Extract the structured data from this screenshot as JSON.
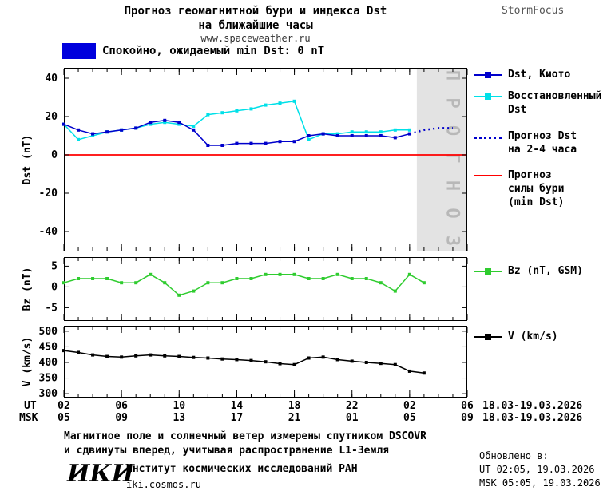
{
  "colors": {
    "dst_kyoto": "#0000cc",
    "dst_restored": "#00e0e8",
    "dst_forecast": "#0000cc",
    "storm_line": "#ff0000",
    "bz": "#2fcc2f",
    "v": "#000000",
    "forecast_band": "#e3e3e3",
    "banner": "#0000dd"
  },
  "header": {
    "title_line1": "Прогноз геомагнитной бури и индекса Dst",
    "title_line2": "на ближайшие часы",
    "url": "www.spaceweather.ru",
    "brand": "StormFocus"
  },
  "banner": {
    "label": "Спокойно, ожидаемый min Dst: 0 nT"
  },
  "chart_data": [
    {
      "type": "line",
      "name": "dst",
      "ylabel": "Dst (nT)",
      "ylim": [
        -50,
        45
      ],
      "yticks": [
        40,
        20,
        0,
        -20,
        -40
      ],
      "xlim": [
        0,
        28
      ],
      "forecast_band": [
        24.5,
        28
      ],
      "forecast_text": "П Р О Г Н О З",
      "hline": {
        "y": 0,
        "color": "#ff0000"
      },
      "series": [
        {
          "name": "Восстановленный Dst",
          "color": "#00e0e8",
          "marker": true,
          "x": [
            0,
            1,
            2,
            3,
            4,
            5,
            6,
            7,
            8,
            9,
            10,
            11,
            12,
            13,
            14,
            15,
            16,
            17,
            18,
            19,
            20,
            21,
            22,
            23,
            24
          ],
          "values": [
            16,
            8,
            10,
            12,
            13,
            14,
            16,
            17,
            16,
            15,
            21,
            22,
            23,
            24,
            26,
            27,
            28,
            8,
            11,
            11,
            12,
            12,
            12,
            13,
            13
          ]
        },
        {
          "name": "Dst, Киото",
          "color": "#0000cc",
          "marker": true,
          "x": [
            0,
            1,
            2,
            3,
            4,
            5,
            6,
            7,
            8,
            9,
            10,
            11,
            12,
            13,
            14,
            15,
            16,
            17,
            18,
            19,
            20,
            21,
            22,
            23,
            24
          ],
          "values": [
            16,
            13,
            11,
            12,
            13,
            14,
            17,
            18,
            17,
            13,
            5,
            5,
            6,
            6,
            6,
            7,
            7,
            10,
            11,
            10,
            10,
            10,
            10,
            9,
            11
          ]
        },
        {
          "name": "Прогноз Dst на 2-4 часа",
          "color": "#0000cc",
          "dash": true,
          "x": [
            24,
            25,
            26,
            27
          ],
          "values": [
            11,
            13,
            14,
            14
          ]
        }
      ]
    },
    {
      "type": "line",
      "name": "bz",
      "ylabel": "Bz (nT)",
      "ylim": [
        -8,
        7
      ],
      "yticks": [
        5,
        0,
        -5
      ],
      "xlim": [
        0,
        28
      ],
      "series": [
        {
          "name": "Bz (nT, GSM)",
          "color": "#2fcc2f",
          "marker": true,
          "x": [
            0,
            1,
            2,
            3,
            4,
            5,
            6,
            7,
            8,
            9,
            10,
            11,
            12,
            13,
            14,
            15,
            16,
            17,
            18,
            19,
            20,
            21,
            22,
            23,
            24,
            25
          ],
          "values": [
            1,
            2,
            2,
            2,
            1,
            1,
            3,
            1,
            -2,
            -1,
            1,
            1,
            2,
            2,
            3,
            3,
            3,
            2,
            2,
            3,
            2,
            2,
            1,
            -1,
            3,
            1
          ]
        }
      ]
    },
    {
      "type": "line",
      "name": "v",
      "ylabel": "V (km/s)",
      "ylim": [
        290,
        515
      ],
      "yticks": [
        500,
        450,
        400,
        350,
        300
      ],
      "xlim": [
        0,
        28
      ],
      "series": [
        {
          "name": "V (km/s)",
          "color": "#000000",
          "marker": true,
          "x": [
            0,
            1,
            2,
            3,
            4,
            5,
            6,
            7,
            8,
            9,
            10,
            11,
            12,
            13,
            14,
            15,
            16,
            17,
            18,
            19,
            20,
            21,
            22,
            23,
            24,
            25
          ],
          "values": [
            438,
            432,
            424,
            419,
            417,
            421,
            424,
            421,
            419,
            416,
            414,
            411,
            409,
            406,
            402,
            396,
            393,
            414,
            417,
            409,
            404,
            400,
            397,
            393,
            372,
            366
          ]
        }
      ]
    }
  ],
  "xaxis": {
    "ticks": [
      0,
      4,
      8,
      12,
      16,
      20,
      24,
      28
    ],
    "ut_labels": [
      "02",
      "06",
      "10",
      "14",
      "18",
      "22",
      "02",
      "06"
    ],
    "msk_labels": [
      "05",
      "09",
      "13",
      "17",
      "21",
      "01",
      "05",
      "09"
    ],
    "ut_row_label": "UT",
    "msk_row_label": "MSK",
    "ut_date": "18.03-19.03.2026",
    "msk_date": "18.03-19.03.2026"
  },
  "legend": {
    "dst": [
      {
        "label": "Dst, Киото",
        "style": "line-marker",
        "color": "#0000cc"
      },
      {
        "label": "Восстановленный\nDst",
        "style": "line-marker",
        "color": "#00e0e8"
      },
      {
        "label": "Прогноз Dst\nна 2-4 часа",
        "style": "dotted",
        "color": "#0000cc"
      },
      {
        "label": "Прогноз\nсилы бури\n(min Dst)",
        "style": "solid",
        "color": "#ff0000"
      }
    ],
    "bz": [
      {
        "label": "Bz (nT, GSM)",
        "style": "line-marker",
        "color": "#2fcc2f"
      }
    ],
    "v": [
      {
        "label": "V (km/s)",
        "style": "line-marker",
        "color": "#000000"
      }
    ]
  },
  "footer": {
    "note_line1": "Магнитное поле и солнечный ветер измерены спутником DSCOVR",
    "note_line2": "и сдвинуты вперед, учитывая распространение L1-Земля",
    "logo": "ИКИ",
    "institute": "Институт космических исследований РАН",
    "site": "iki.cosmos.ru",
    "updated_label": "Обновлено в:",
    "updated_ut": "UT  02:05, 19.03.2026",
    "updated_msk": "MSK 05:05, 19.03.2026"
  }
}
